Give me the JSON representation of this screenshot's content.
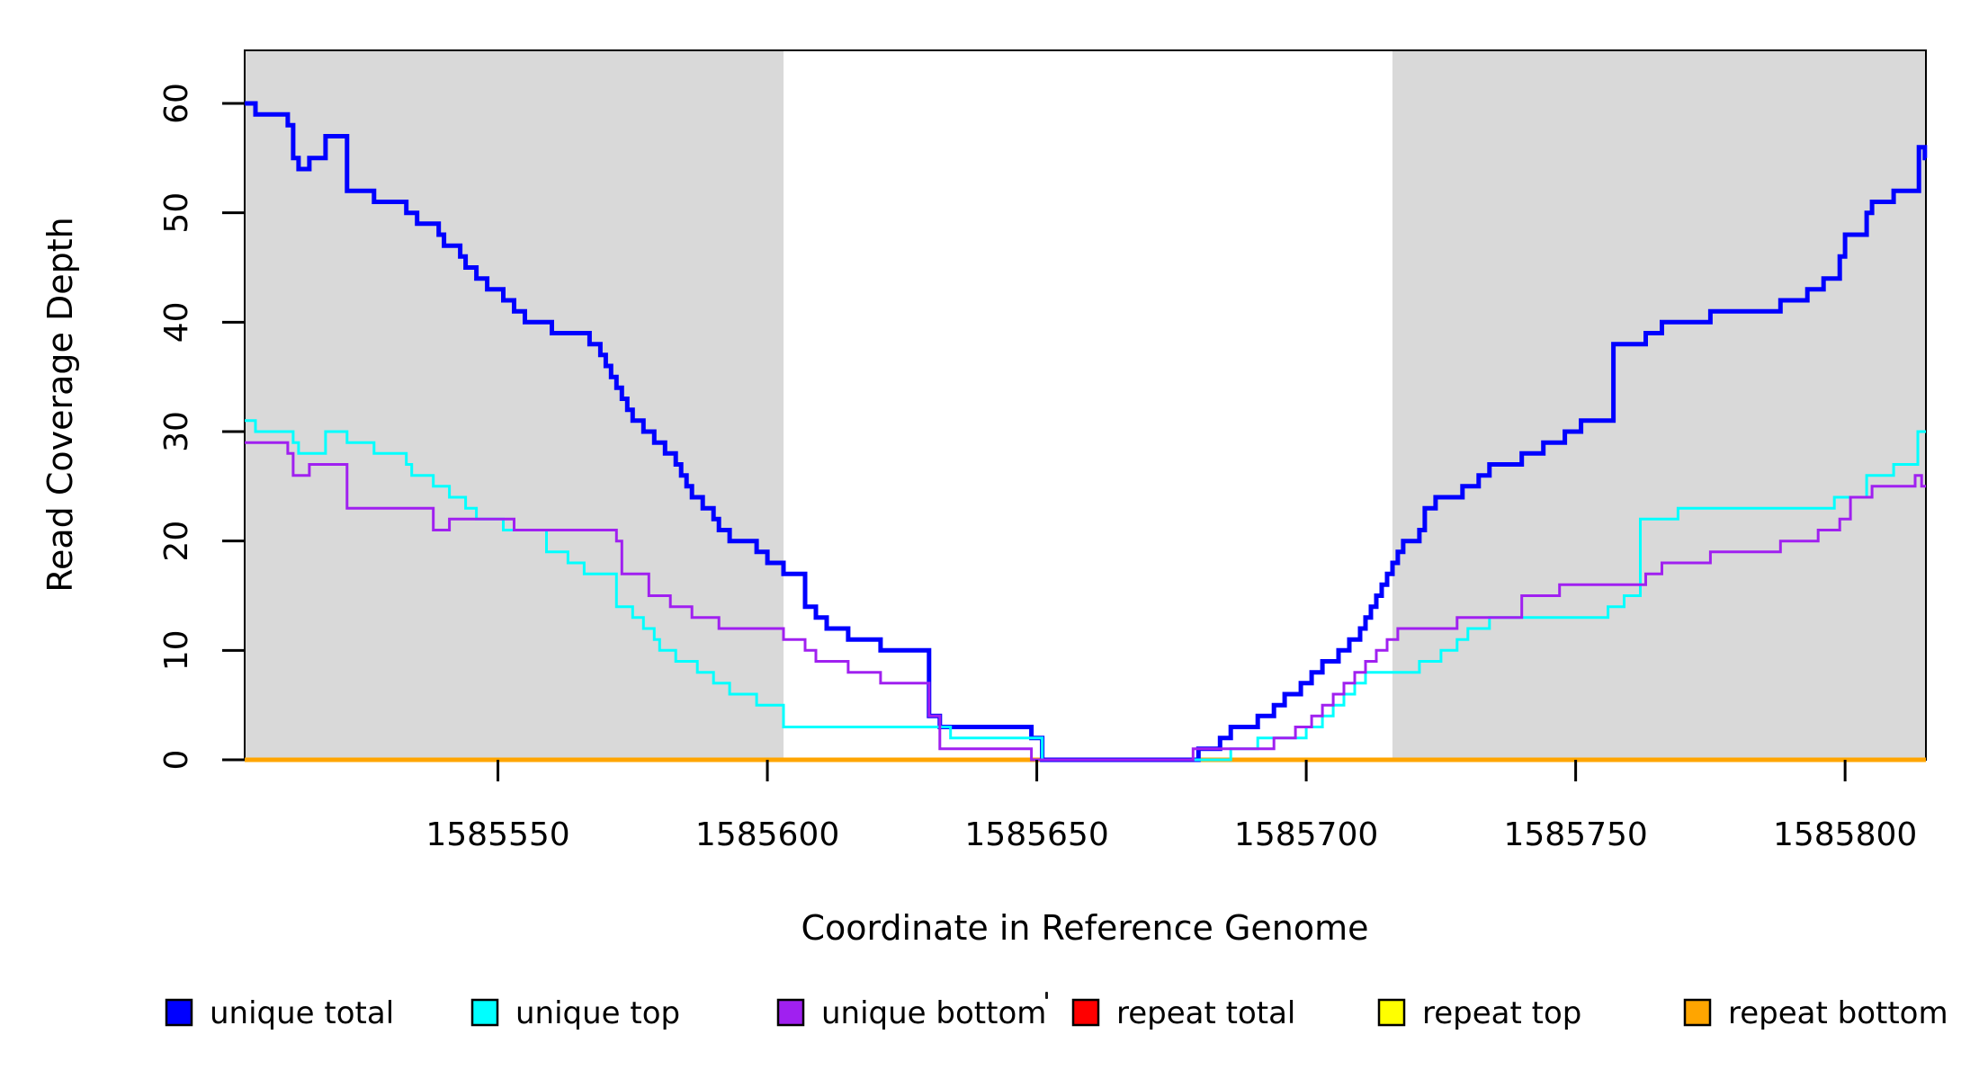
{
  "chart_data": {
    "type": "line",
    "subtype": "step",
    "title": "",
    "xlabel": "Coordinate in Reference Genome",
    "ylabel": "Read Coverage Depth",
    "xlim": [
      1585503,
      1585815
    ],
    "ylim": [
      0,
      64.85
    ],
    "grid": false,
    "x_ticks": [
      {
        "value": 1585550,
        "label": "1585550"
      },
      {
        "value": 1585600,
        "label": "1585600"
      },
      {
        "value": 1585650,
        "label": "1585650"
      },
      {
        "value": 1585700,
        "label": "1585700"
      },
      {
        "value": 1585750,
        "label": "1585750"
      },
      {
        "value": 1585800,
        "label": "1585800"
      }
    ],
    "y_ticks": [
      {
        "value": 0,
        "label": "0"
      },
      {
        "value": 10,
        "label": "10"
      },
      {
        "value": 20,
        "label": "20"
      },
      {
        "value": 30,
        "label": "30"
      },
      {
        "value": 40,
        "label": "40"
      },
      {
        "value": 50,
        "label": "50"
      },
      {
        "value": 60,
        "label": "60"
      }
    ],
    "background_bands": {
      "color": "#D9D9D9",
      "regions": [
        [
          1585503,
          1585603
        ],
        [
          1585716,
          1585815
        ]
      ]
    },
    "series": [
      {
        "name": "repeat total",
        "color": "#FF0000",
        "line_width": 5,
        "points": [
          [
            1585503,
            0
          ],
          [
            1585815,
            0
          ]
        ]
      },
      {
        "name": "repeat top",
        "color": "#FFFF00",
        "line_width": 3,
        "points": [
          [
            1585503,
            0
          ],
          [
            1585815,
            0
          ]
        ]
      },
      {
        "name": "repeat bottom",
        "color": "#FFA500",
        "line_width": 5,
        "points": [
          [
            1585503,
            0
          ],
          [
            1585815,
            0
          ]
        ]
      },
      {
        "name": "unique total",
        "color": "#0000FF",
        "line_width": 5,
        "points": [
          [
            1585503,
            60
          ],
          [
            1585505,
            59
          ],
          [
            1585511,
            58
          ],
          [
            1585512,
            55
          ],
          [
            1585513,
            54
          ],
          [
            1585515,
            55
          ],
          [
            1585518,
            57
          ],
          [
            1585522,
            52
          ],
          [
            1585527,
            51
          ],
          [
            1585533,
            50
          ],
          [
            1585535,
            49
          ],
          [
            1585539,
            48
          ],
          [
            1585540,
            47
          ],
          [
            1585543,
            46
          ],
          [
            1585544,
            45
          ],
          [
            1585546,
            44
          ],
          [
            1585548,
            43
          ],
          [
            1585551,
            42
          ],
          [
            1585553,
            41
          ],
          [
            1585555,
            40
          ],
          [
            1585560,
            39
          ],
          [
            1585567,
            38
          ],
          [
            1585569,
            37
          ],
          [
            1585570,
            36
          ],
          [
            1585571,
            35
          ],
          [
            1585572,
            34
          ],
          [
            1585573,
            33
          ],
          [
            1585574,
            32
          ],
          [
            1585575,
            31
          ],
          [
            1585577,
            30
          ],
          [
            1585579,
            29
          ],
          [
            1585581,
            28
          ],
          [
            1585583,
            27
          ],
          [
            1585584,
            26
          ],
          [
            1585585,
            25
          ],
          [
            1585586,
            24
          ],
          [
            1585588,
            23
          ],
          [
            1585590,
            22
          ],
          [
            1585591,
            21
          ],
          [
            1585593,
            20
          ],
          [
            1585598,
            19
          ],
          [
            1585600,
            18
          ],
          [
            1585603,
            17
          ],
          [
            1585607,
            14
          ],
          [
            1585609,
            13
          ],
          [
            1585611,
            12
          ],
          [
            1585615,
            11
          ],
          [
            1585621,
            10
          ],
          [
            1585630,
            4
          ],
          [
            1585632,
            3
          ],
          [
            1585649,
            2
          ],
          [
            1585651,
            0
          ],
          [
            1585680,
            1
          ],
          [
            1585684,
            2
          ],
          [
            1585686,
            3
          ],
          [
            1585691,
            4
          ],
          [
            1585694,
            5
          ],
          [
            1585696,
            6
          ],
          [
            1585699,
            7
          ],
          [
            1585701,
            8
          ],
          [
            1585703,
            9
          ],
          [
            1585706,
            10
          ],
          [
            1585708,
            11
          ],
          [
            1585710,
            12
          ],
          [
            1585711,
            13
          ],
          [
            1585712,
            14
          ],
          [
            1585713,
            15
          ],
          [
            1585714,
            16
          ],
          [
            1585715,
            17
          ],
          [
            1585716,
            18
          ],
          [
            1585717,
            19
          ],
          [
            1585718,
            20
          ],
          [
            1585721,
            21
          ],
          [
            1585722,
            23
          ],
          [
            1585724,
            24
          ],
          [
            1585729,
            25
          ],
          [
            1585732,
            26
          ],
          [
            1585734,
            27
          ],
          [
            1585740,
            28
          ],
          [
            1585744,
            29
          ],
          [
            1585748,
            30
          ],
          [
            1585751,
            31
          ],
          [
            1585757,
            38
          ],
          [
            1585763,
            39
          ],
          [
            1585766,
            40
          ],
          [
            1585775,
            41
          ],
          [
            1585788,
            42
          ],
          [
            1585793,
            43
          ],
          [
            1585796,
            44
          ],
          [
            1585799,
            46
          ],
          [
            1585800,
            48
          ],
          [
            1585804,
            50
          ],
          [
            1585805,
            51
          ],
          [
            1585809,
            52
          ],
          [
            1585813.7,
            56
          ],
          [
            1585814.8,
            55
          ],
          [
            1585815,
            55
          ]
        ]
      },
      {
        "name": "unique top",
        "color": "#00FFFF",
        "line_width": 3,
        "points": [
          [
            1585503,
            31
          ],
          [
            1585505,
            30
          ],
          [
            1585512,
            29
          ],
          [
            1585513,
            28
          ],
          [
            1585518,
            30
          ],
          [
            1585522,
            29
          ],
          [
            1585527,
            28
          ],
          [
            1585533,
            27
          ],
          [
            1585534,
            26
          ],
          [
            1585538,
            25
          ],
          [
            1585541,
            24
          ],
          [
            1585544,
            23
          ],
          [
            1585546,
            22
          ],
          [
            1585551,
            21
          ],
          [
            1585559,
            19
          ],
          [
            1585563,
            18
          ],
          [
            1585566,
            17
          ],
          [
            1585572,
            14
          ],
          [
            1585575,
            13
          ],
          [
            1585577,
            12
          ],
          [
            1585579,
            11
          ],
          [
            1585580,
            10
          ],
          [
            1585583,
            9
          ],
          [
            1585587,
            8
          ],
          [
            1585590,
            7
          ],
          [
            1585593,
            6
          ],
          [
            1585598,
            5
          ],
          [
            1585603,
            3
          ],
          [
            1585634,
            2
          ],
          [
            1585651,
            0
          ],
          [
            1585686,
            1
          ],
          [
            1585691,
            2
          ],
          [
            1585700,
            3
          ],
          [
            1585703,
            4
          ],
          [
            1585705,
            5
          ],
          [
            1585707,
            6
          ],
          [
            1585709,
            7
          ],
          [
            1585711,
            8
          ],
          [
            1585721,
            9
          ],
          [
            1585725,
            10
          ],
          [
            1585728,
            11
          ],
          [
            1585730,
            12
          ],
          [
            1585734,
            13
          ],
          [
            1585756,
            14
          ],
          [
            1585759,
            15
          ],
          [
            1585762,
            22
          ],
          [
            1585769,
            23
          ],
          [
            1585798,
            24
          ],
          [
            1585804,
            26
          ],
          [
            1585809,
            27
          ],
          [
            1585813.5,
            30
          ],
          [
            1585815,
            30
          ]
        ]
      },
      {
        "name": "unique bottom",
        "color": "#A020F0",
        "line_width": 3,
        "points": [
          [
            1585503,
            29
          ],
          [
            1585511,
            28
          ],
          [
            1585512,
            26
          ],
          [
            1585515,
            27
          ],
          [
            1585522,
            23
          ],
          [
            1585538,
            21
          ],
          [
            1585541,
            22
          ],
          [
            1585553,
            21
          ],
          [
            1585572,
            20
          ],
          [
            1585573,
            17
          ],
          [
            1585578,
            15
          ],
          [
            1585582,
            14
          ],
          [
            1585586,
            13
          ],
          [
            1585591,
            12
          ],
          [
            1585603,
            11
          ],
          [
            1585607,
            10
          ],
          [
            1585609,
            9
          ],
          [
            1585615,
            8
          ],
          [
            1585621,
            7
          ],
          [
            1585630,
            4
          ],
          [
            1585632,
            1
          ],
          [
            1585649,
            0
          ],
          [
            1585679,
            1
          ],
          [
            1585694,
            2
          ],
          [
            1585698,
            3
          ],
          [
            1585701,
            4
          ],
          [
            1585703,
            5
          ],
          [
            1585705,
            6
          ],
          [
            1585707,
            7
          ],
          [
            1585709,
            8
          ],
          [
            1585711,
            9
          ],
          [
            1585713,
            10
          ],
          [
            1585715,
            11
          ],
          [
            1585717,
            12
          ],
          [
            1585728,
            13
          ],
          [
            1585740,
            15
          ],
          [
            1585747,
            16
          ],
          [
            1585763,
            17
          ],
          [
            1585766,
            18
          ],
          [
            1585775,
            19
          ],
          [
            1585788,
            20
          ],
          [
            1585795,
            21
          ],
          [
            1585799,
            22
          ],
          [
            1585801,
            24
          ],
          [
            1585805,
            25
          ],
          [
            1585813,
            26
          ],
          [
            1585814.2,
            25
          ],
          [
            1585815,
            25
          ]
        ]
      }
    ],
    "legend_position": "bottom"
  },
  "legend": {
    "items": [
      {
        "label": "unique total",
        "color": "#0000FF"
      },
      {
        "label": "unique top",
        "color": "#00FFFF"
      },
      {
        "label": "unique bottom",
        "color": "#A020F0"
      },
      {
        "label": "repeat total",
        "color": "#FF0000"
      },
      {
        "label": "repeat top",
        "color": "#FFFF00"
      },
      {
        "label": "repeat bottom",
        "color": "#FFA500"
      }
    ],
    "stray_mark": true
  }
}
